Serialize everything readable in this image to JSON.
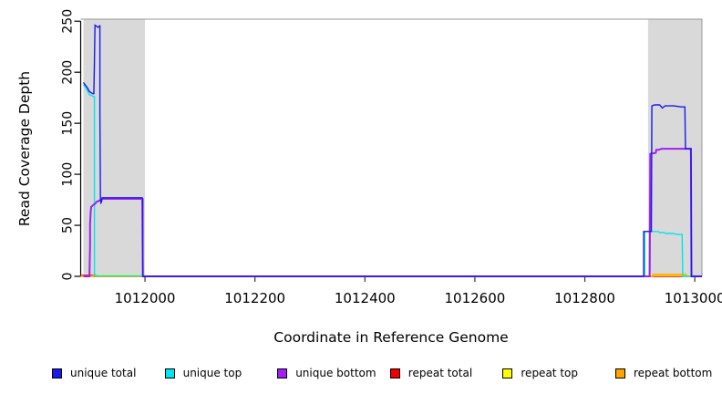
{
  "chart_data": {
    "type": "line",
    "title": "",
    "xlabel": "Coordinate in Reference Genome",
    "ylabel": "Read Coverage Depth",
    "xlim": [
      1011883,
      1013013
    ],
    "ylim": [
      0,
      252
    ],
    "x_ticks": [
      1012000,
      1012200,
      1012400,
      1012600,
      1012800,
      1013000
    ],
    "y_ticks": [
      0,
      50,
      100,
      150,
      200,
      250
    ],
    "grid": false,
    "legend_position": "bottom",
    "plot_background": "#ffffff",
    "border_color": "#999999",
    "highlight_regions": [
      {
        "name": "left-repeat-region",
        "x0": 1011888,
        "x1": 1012000,
        "color": "#d9d9d9"
      },
      {
        "name": "right-repeat-region",
        "x0": 1012915,
        "x1": 1013013,
        "color": "#d9d9d9"
      }
    ],
    "legend": [
      {
        "label": "unique total",
        "color": "#1a1aef"
      },
      {
        "label": "unique top",
        "color": "#00e6ee"
      },
      {
        "label": "unique bottom",
        "color": "#a020f0"
      },
      {
        "label": "repeat total",
        "color": "#ee0000"
      },
      {
        "label": "repeat top",
        "color": "#ffff00"
      },
      {
        "label": "repeat bottom",
        "color": "#ffa500"
      }
    ],
    "series": [
      {
        "id": "repeat-total",
        "name": "repeat total",
        "color": "#ee0000",
        "stroke_width": 1.4,
        "points": [
          [
            1011883,
            1
          ],
          [
            1011905,
            1
          ],
          [
            1011906,
            0
          ],
          [
            1013013,
            0
          ]
        ]
      },
      {
        "id": "repeat-top",
        "name": "repeat top",
        "color": "#ffff00",
        "stroke_width": 1.4,
        "points": [
          [
            1011883,
            0
          ],
          [
            1011906,
            0
          ],
          [
            1011907,
            1.1
          ],
          [
            1011999,
            1.1
          ],
          [
            1012000,
            0
          ],
          [
            1012918,
            0
          ],
          [
            1012919,
            0.9
          ],
          [
            1012992,
            0.9
          ],
          [
            1012993,
            0
          ],
          [
            1013013,
            0
          ]
        ]
      },
      {
        "id": "repeat-bottom",
        "name": "repeat bottom",
        "color": "#ffa500",
        "stroke_width": 1.5,
        "points": [
          [
            1011883,
            0
          ],
          [
            1011906,
            0
          ],
          [
            1011906,
            1.6
          ],
          [
            1011910,
            1.6
          ],
          [
            1011910,
            0
          ],
          [
            1012923,
            0
          ],
          [
            1012924,
            1.8
          ],
          [
            1012984,
            1.8
          ],
          [
            1012985,
            0
          ],
          [
            1013013,
            0
          ]
        ]
      },
      {
        "id": "unique-top",
        "name": "unique top",
        "color": "#00e6ee",
        "stroke_width": 1.4,
        "points": [
          [
            1011888,
            188
          ],
          [
            1011893,
            184
          ],
          [
            1011899,
            178
          ],
          [
            1011903,
            177
          ],
          [
            1011907,
            176
          ],
          [
            1011908,
            176
          ],
          [
            1011908,
            0.5
          ],
          [
            1011999,
            0.5
          ],
          [
            1012000,
            0
          ],
          [
            1012909,
            0
          ],
          [
            1012909,
            44
          ],
          [
            1012933,
            44
          ],
          [
            1012936,
            43
          ],
          [
            1012944,
            43
          ],
          [
            1012947,
            42
          ],
          [
            1012960,
            42
          ],
          [
            1012968,
            41
          ],
          [
            1012977,
            41
          ],
          [
            1012978,
            0
          ],
          [
            1013013,
            0
          ]
        ]
      },
      {
        "id": "unique-bottom",
        "name": "unique bottom",
        "color": "#a020f0",
        "stroke_width": 2.0,
        "points": [
          [
            1011888,
            0
          ],
          [
            1011899,
            0
          ],
          [
            1011900,
            30
          ],
          [
            1011900,
            51
          ],
          [
            1011901,
            62
          ],
          [
            1011902,
            68
          ],
          [
            1011904,
            69
          ],
          [
            1011906,
            70
          ],
          [
            1011909,
            71
          ],
          [
            1011912,
            73
          ],
          [
            1011916,
            74
          ],
          [
            1011920,
            75
          ],
          [
            1011923,
            76
          ],
          [
            1011994,
            76
          ],
          [
            1011995,
            75
          ],
          [
            1011996,
            0
          ],
          [
            1012918,
            0
          ],
          [
            1012919,
            120
          ],
          [
            1012929,
            121
          ],
          [
            1012930,
            124
          ],
          [
            1012934,
            124
          ],
          [
            1012940,
            125
          ],
          [
            1012982,
            125
          ],
          [
            1012993,
            125
          ],
          [
            1012994,
            0
          ],
          [
            1013013,
            0
          ]
        ]
      },
      {
        "id": "unique-total",
        "name": "unique total",
        "color": "#1a1aef",
        "stroke_width": 1.4,
        "points": [
          [
            1011888,
            190
          ],
          [
            1011892,
            187
          ],
          [
            1011895,
            185
          ],
          [
            1011899,
            181
          ],
          [
            1011902,
            180
          ],
          [
            1011905,
            179
          ],
          [
            1011907,
            179
          ],
          [
            1011907,
            182
          ],
          [
            1011908,
            210
          ],
          [
            1011908,
            212
          ],
          [
            1011909,
            246
          ],
          [
            1011915,
            244
          ],
          [
            1011917,
            245
          ],
          [
            1011918,
            246
          ],
          [
            1011918,
            160
          ],
          [
            1011919,
            75
          ],
          [
            1011920,
            72
          ],
          [
            1011921,
            73
          ],
          [
            1011922,
            77
          ],
          [
            1011995,
            77
          ],
          [
            1011996,
            76
          ],
          [
            1011996,
            0
          ],
          [
            1012907,
            0
          ],
          [
            1012907,
            44
          ],
          [
            1012921,
            44
          ],
          [
            1012921,
            45
          ],
          [
            1012922,
            167
          ],
          [
            1012927,
            168
          ],
          [
            1012936,
            168
          ],
          [
            1012941,
            165
          ],
          [
            1012946,
            167
          ],
          [
            1012962,
            167
          ],
          [
            1012975,
            166
          ],
          [
            1012982,
            166
          ],
          [
            1012983,
            125
          ],
          [
            1012993,
            125
          ],
          [
            1012994,
            0
          ],
          [
            1013013,
            0
          ]
        ]
      }
    ]
  }
}
